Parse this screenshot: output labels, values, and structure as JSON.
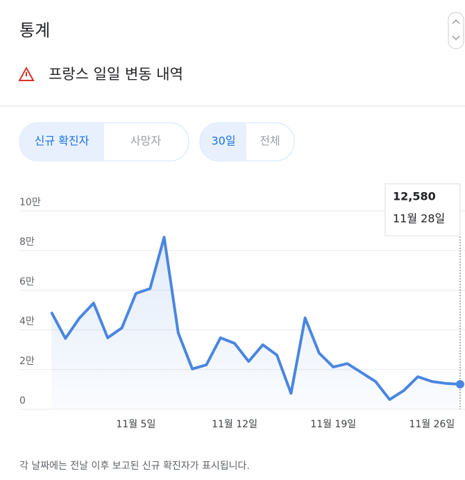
{
  "header": {
    "title": "통계",
    "subtitle": "프랑스 일일 변동 내역"
  },
  "tabs": {
    "metric": [
      "신규 확진자",
      "사망자"
    ],
    "range": [
      "30일",
      "전체"
    ]
  },
  "footnote": "각 날짜에는 전날 이후 보고된 신규 확진자가 표시됩니다.",
  "chart_data": {
    "type": "line",
    "color": "#4a86e0",
    "categories": [
      null,
      null,
      null,
      null,
      null,
      null,
      "11월 5일",
      null,
      null,
      null,
      null,
      null,
      null,
      "11월 12일",
      null,
      null,
      null,
      null,
      null,
      null,
      "11월 19일",
      null,
      null,
      null,
      null,
      null,
      null,
      "11월 26일",
      null,
      null
    ],
    "values": [
      49000,
      35700,
      46000,
      53500,
      36000,
      41000,
      58400,
      60800,
      86700,
      38500,
      20300,
      22400,
      36000,
      33200,
      24100,
      32500,
      27300,
      8000,
      46000,
      28300,
      21300,
      23000,
      18500,
      14000,
      4900,
      9400,
      16400,
      14000,
      13000,
      12580
    ],
    "value_labels": [
      null,
      null,
      null,
      null,
      null,
      null,
      null,
      null,
      null,
      null,
      null,
      null,
      null,
      null,
      null,
      null,
      null,
      null,
      null,
      null,
      null,
      null,
      null,
      null,
      null,
      null,
      null,
      null,
      null,
      "12,580"
    ],
    "tooltip_date": "11월 28일",
    "ylim": [
      0,
      100000
    ],
    "yticks": [
      {
        "value": 0,
        "label": "0"
      },
      {
        "value": 20000,
        "label": "2만"
      },
      {
        "value": 40000,
        "label": "4만"
      },
      {
        "value": 60000,
        "label": "6만"
      },
      {
        "value": 80000,
        "label": "8만"
      },
      {
        "value": 100000,
        "label": "10만"
      }
    ],
    "grid": true
  }
}
